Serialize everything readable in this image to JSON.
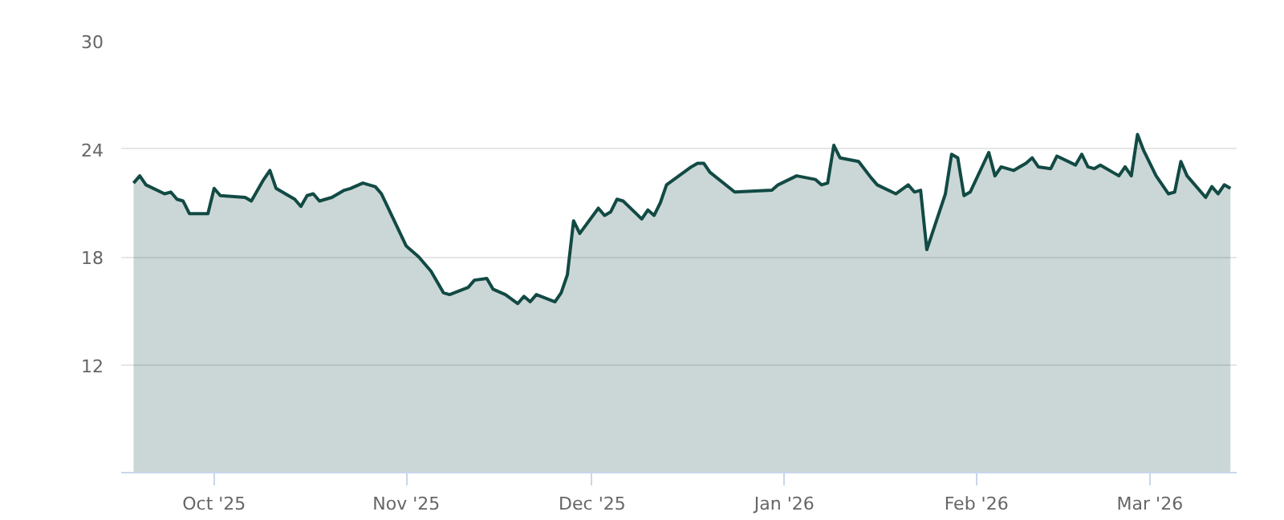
{
  "chart_data": {
    "type": "area",
    "x": [
      "2025-09-18",
      "2025-09-19",
      "2025-09-20",
      "2025-09-23",
      "2025-09-24",
      "2025-09-25",
      "2025-09-26",
      "2025-09-27",
      "2025-09-30",
      "2025-10-01",
      "2025-10-02",
      "2025-10-06",
      "2025-10-07",
      "2025-10-09",
      "2025-10-10",
      "2025-10-11",
      "2025-10-14",
      "2025-10-15",
      "2025-10-16",
      "2025-10-17",
      "2025-10-18",
      "2025-10-20",
      "2025-10-22",
      "2025-10-23",
      "2025-10-25",
      "2025-10-27",
      "2025-10-28",
      "2025-11-01",
      "2025-11-03",
      "2025-11-05",
      "2025-11-07",
      "2025-11-08",
      "2025-11-11",
      "2025-11-12",
      "2025-11-14",
      "2025-11-15",
      "2025-11-17",
      "2025-11-19",
      "2025-11-20",
      "2025-11-21",
      "2025-11-22",
      "2025-11-25",
      "2025-11-26",
      "2025-11-27",
      "2025-11-28",
      "2025-11-29",
      "2025-12-02",
      "2025-12-03",
      "2025-12-04",
      "2025-12-05",
      "2025-12-06",
      "2025-12-09",
      "2025-12-10",
      "2025-12-11",
      "2025-12-12",
      "2025-12-13",
      "2025-12-15",
      "2025-12-17",
      "2025-12-18",
      "2025-12-19",
      "2025-12-20",
      "2025-12-24",
      "2025-12-30",
      "2025-12-31",
      "2026-01-03",
      "2026-01-06",
      "2026-01-07",
      "2026-01-08",
      "2026-01-09",
      "2026-01-10",
      "2026-01-13",
      "2026-01-15",
      "2026-01-16",
      "2026-01-19",
      "2026-01-21",
      "2026-01-22",
      "2026-01-23",
      "2026-01-24",
      "2026-01-27",
      "2026-01-28",
      "2026-01-29",
      "2026-01-30",
      "2026-01-31",
      "2026-02-03",
      "2026-02-04",
      "2026-02-05",
      "2026-02-07",
      "2026-02-09",
      "2026-02-10",
      "2026-02-11",
      "2026-02-13",
      "2026-02-14",
      "2026-02-17",
      "2026-02-18",
      "2026-02-19",
      "2026-02-20",
      "2026-02-21",
      "2026-02-24",
      "2026-02-25",
      "2026-02-26",
      "2026-02-27",
      "2026-02-28",
      "2026-03-02",
      "2026-03-04",
      "2026-03-05",
      "2026-03-06",
      "2026-03-07",
      "2026-03-10",
      "2026-03-11",
      "2026-03-12",
      "2026-03-13",
      "2026-03-14"
    ],
    "series": [
      {
        "color": "#124a44",
        "values": [
          22.1,
          22.5,
          22.0,
          21.5,
          21.6,
          21.2,
          21.1,
          20.4,
          20.4,
          21.8,
          21.4,
          21.3,
          21.1,
          22.3,
          22.8,
          21.8,
          21.2,
          20.8,
          21.4,
          21.5,
          21.1,
          21.3,
          21.7,
          21.8,
          22.1,
          21.9,
          21.5,
          18.6,
          18.0,
          17.2,
          16.0,
          15.9,
          16.3,
          16.7,
          16.8,
          16.2,
          15.9,
          15.4,
          15.8,
          15.5,
          15.9,
          15.5,
          16.0,
          17.0,
          20.0,
          19.3,
          20.7,
          20.3,
          20.5,
          21.2,
          21.1,
          20.1,
          20.6,
          20.3,
          21.0,
          22.0,
          22.5,
          23.0,
          23.2,
          23.2,
          22.7,
          21.6,
          21.7,
          22.0,
          22.5,
          22.3,
          22.0,
          22.1,
          24.2,
          23.5,
          23.3,
          22.4,
          22.0,
          21.5,
          22.0,
          21.6,
          21.7,
          18.4,
          21.5,
          23.7,
          23.5,
          21.4,
          21.6,
          23.8,
          22.5,
          23.0,
          22.8,
          23.2,
          23.5,
          23.0,
          22.9,
          23.6,
          23.1,
          23.7,
          23.0,
          22.9,
          23.1,
          22.5,
          23.0,
          22.5,
          24.8,
          23.9,
          22.5,
          21.5,
          21.6,
          23.3,
          22.5,
          21.3,
          21.9,
          21.5,
          22.0,
          21.8
        ]
      }
    ],
    "xlim": [
      "2025-09-16",
      "2026-03-15"
    ],
    "xticks": [
      {
        "value": "2025-10-01",
        "label": "Oct '25"
      },
      {
        "value": "2025-11-01",
        "label": "Nov '25"
      },
      {
        "value": "2025-12-01",
        "label": "Dec '25"
      },
      {
        "value": "2026-01-01",
        "label": "Jan '26"
      },
      {
        "value": "2026-02-01",
        "label": "Feb '26"
      },
      {
        "value": "2026-03-01",
        "label": "Mar '26"
      }
    ],
    "ylim": [
      6,
      30
    ],
    "yticks": [
      12,
      18,
      24,
      30
    ],
    "grid": "y"
  }
}
